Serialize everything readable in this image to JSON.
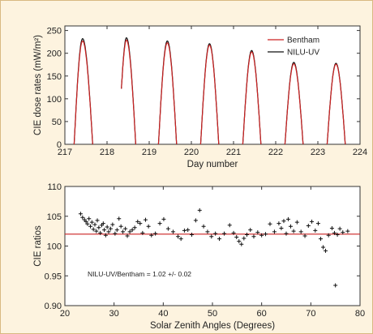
{
  "chart_data": [
    {
      "type": "line",
      "xlabel": "Day number",
      "ylabel": "CIE dose rates (mW/m²)",
      "xlim": [
        217,
        224
      ],
      "ylim": [
        0,
        260
      ],
      "xticks": [
        217,
        218,
        219,
        220,
        221,
        222,
        223,
        224
      ],
      "yticks": [
        0,
        50,
        100,
        150,
        200,
        250
      ],
      "legend_position": "top-right",
      "colors": {
        "Bentham": "#cc2222",
        "NILU-UV": "#111111"
      },
      "series": [
        {
          "name": "Bentham",
          "days": [
            {
              "start": 217.22,
              "end": 217.66,
              "peak_x": 217.42,
              "peak": 227
            },
            {
              "start": 218.34,
              "end": 218.68,
              "peak_x": 218.46,
              "peak": 229,
              "start_value": 122
            },
            {
              "start": 219.22,
              "end": 219.65,
              "peak_x": 219.43,
              "peak": 223
            },
            {
              "start": 220.22,
              "end": 220.65,
              "peak_x": 220.43,
              "peak": 218
            },
            {
              "start": 221.22,
              "end": 221.65,
              "peak_x": 221.43,
              "peak": 203
            },
            {
              "start": 222.22,
              "end": 222.65,
              "peak_x": 222.43,
              "peak": 177
            },
            {
              "start": 223.22,
              "end": 223.65,
              "peak_x": 223.43,
              "peak": 176
            }
          ]
        },
        {
          "name": "NILU-UV",
          "days": [
            {
              "start": 217.22,
              "end": 217.66,
              "peak_x": 217.42,
              "peak": 232
            },
            {
              "start": 218.34,
              "end": 218.68,
              "peak_x": 218.46,
              "peak": 234,
              "start_value": 122
            },
            {
              "start": 219.22,
              "end": 219.65,
              "peak_x": 219.43,
              "peak": 227
            },
            {
              "start": 220.22,
              "end": 220.65,
              "peak_x": 220.43,
              "peak": 221
            },
            {
              "start": 221.22,
              "end": 221.65,
              "peak_x": 221.43,
              "peak": 206
            },
            {
              "start": 222.22,
              "end": 222.65,
              "peak_x": 222.43,
              "peak": 180
            },
            {
              "start": 223.22,
              "end": 223.65,
              "peak_x": 223.43,
              "peak": 178
            }
          ]
        }
      ]
    },
    {
      "type": "scatter",
      "xlabel": "Solar Zenith Angles (Degrees)",
      "ylabel": "CIE ratios",
      "xlim": [
        20,
        80
      ],
      "ylim": [
        0.9,
        1.1
      ],
      "xticks": [
        20,
        30,
        40,
        50,
        60,
        70,
        80
      ],
      "yticks": [
        "0.90",
        "0.95",
        "100",
        "105",
        "110"
      ],
      "yticks_values": [
        0.9,
        0.95,
        1.0,
        1.05,
        1.1
      ],
      "annotation": "NILU-UV/Bentham = 1.02 +/- 0.02",
      "mean_line": 1.02,
      "mean_line_color": "#cc2222",
      "points": [
        [
          23.2,
          1.054
        ],
        [
          23.6,
          1.048
        ],
        [
          24.0,
          1.044
        ],
        [
          24.3,
          1.041
        ],
        [
          24.6,
          1.037
        ],
        [
          24.9,
          1.046
        ],
        [
          25.2,
          1.033
        ],
        [
          25.5,
          1.04
        ],
        [
          25.8,
          1.028
        ],
        [
          26.1,
          1.036
        ],
        [
          26.4,
          1.025
        ],
        [
          26.6,
          1.043
        ],
        [
          26.9,
          1.031
        ],
        [
          27.2,
          1.022
        ],
        [
          27.5,
          1.035
        ],
        [
          27.8,
          1.038
        ],
        [
          28.0,
          1.027
        ],
        [
          28.3,
          1.018
        ],
        [
          28.6,
          1.032
        ],
        [
          28.9,
          1.024
        ],
        [
          29.3,
          1.029
        ],
        [
          29.7,
          1.036
        ],
        [
          30.2,
          1.021
        ],
        [
          30.6,
          1.027
        ],
        [
          31.0,
          1.046
        ],
        [
          31.4,
          1.033
        ],
        [
          31.8,
          1.024
        ],
        [
          32.3,
          1.029
        ],
        [
          32.7,
          1.017
        ],
        [
          33.2,
          1.024
        ],
        [
          33.7,
          1.027
        ],
        [
          34.2,
          1.031
        ],
        [
          34.8,
          1.041
        ],
        [
          35.3,
          1.038
        ],
        [
          35.8,
          1.022
        ],
        [
          36.4,
          1.044
        ],
        [
          37.0,
          1.033
        ],
        [
          37.6,
          1.018
        ],
        [
          38.4,
          1.021
        ],
        [
          39.3,
          1.038
        ],
        [
          40.1,
          1.045
        ],
        [
          41.0,
          1.029
        ],
        [
          42.0,
          1.024
        ],
        [
          43.0,
          1.016
        ],
        [
          43.6,
          1.012
        ],
        [
          44.3,
          1.026
        ],
        [
          45.0,
          1.027
        ],
        [
          45.8,
          1.019
        ],
        [
          46.6,
          1.043
        ],
        [
          47.4,
          1.06
        ],
        [
          48.2,
          1.033
        ],
        [
          49.0,
          1.024
        ],
        [
          49.8,
          1.016
        ],
        [
          50.6,
          1.021
        ],
        [
          51.4,
          1.012
        ],
        [
          52.4,
          1.021
        ],
        [
          53.5,
          1.035
        ],
        [
          54.3,
          1.022
        ],
        [
          54.9,
          1.015
        ],
        [
          55.4,
          1.008
        ],
        [
          55.9,
          1.003
        ],
        [
          56.4,
          1.013
        ],
        [
          57.0,
          1.019
        ],
        [
          57.7,
          1.027
        ],
        [
          58.4,
          1.016
        ],
        [
          59.2,
          1.023
        ],
        [
          60.0,
          1.018
        ],
        [
          60.8,
          1.02
        ],
        [
          61.7,
          1.037
        ],
        [
          62.6,
          1.024
        ],
        [
          63.5,
          1.038
        ],
        [
          64.0,
          1.03
        ],
        [
          64.5,
          1.042
        ],
        [
          65.0,
          1.021
        ],
        [
          65.4,
          1.045
        ],
        [
          65.9,
          1.033
        ],
        [
          66.5,
          1.025
        ],
        [
          67.2,
          1.04
        ],
        [
          68.0,
          1.024
        ],
        [
          68.8,
          1.017
        ],
        [
          69.5,
          1.034
        ],
        [
          70.2,
          1.041
        ],
        [
          70.9,
          1.026
        ],
        [
          71.5,
          1.038
        ],
        [
          72.0,
          1.012
        ],
        [
          72.5,
          0.998
        ],
        [
          73.0,
          0.992
        ],
        [
          73.6,
          1.018
        ],
        [
          74.3,
          1.03
        ],
        [
          74.8,
          1.022
        ],
        [
          75.4,
          1.019
        ],
        [
          75.9,
          1.029
        ],
        [
          76.5,
          1.023
        ],
        [
          77.5,
          1.025
        ],
        [
          75.0,
          0.934
        ]
      ]
    }
  ]
}
